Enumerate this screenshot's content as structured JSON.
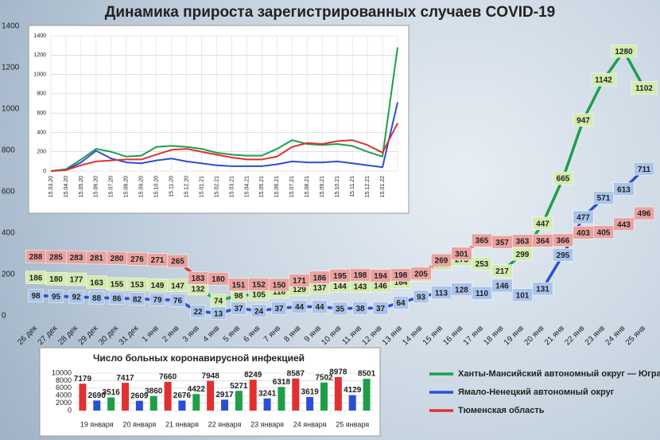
{
  "chart_data": [
    {
      "type": "line",
      "title": "Динамика прироста зарегистрированных случаев COVID-19",
      "categories": [
        "26 дек",
        "27 дек",
        "28 дек",
        "29 дек",
        "30 дек",
        "31 дек",
        "1 янв",
        "2 янв",
        "3 янв",
        "4 янв",
        "5 янв",
        "6 янв",
        "7 янв",
        "8 янв",
        "9 янв",
        "10 янв",
        "11 янв",
        "12 янв",
        "13 янв",
        "14 янв",
        "15 янв",
        "16 янв",
        "17 янв",
        "18 янв",
        "19 янв",
        "20 янв",
        "21 янв",
        "22 янв",
        "23 янв",
        "24 янв",
        "25 янв"
      ],
      "series": [
        {
          "name": "Ханты-Мансийский автономный округ — Югра",
          "color": "#1f9e4a",
          "label_fill": "#d3ebb0",
          "values": [
            186,
            180,
            177,
            163,
            155,
            153,
            149,
            147,
            132,
            74,
            98,
            105,
            118,
            129,
            137,
            144,
            143,
            146,
            164,
            199,
            251,
            273,
            253,
            217,
            299,
            447,
            665,
            947,
            1142,
            1280,
            1102
          ]
        },
        {
          "name": "Ямало-Ненецкий автономный округ",
          "color": "#2a4fd6",
          "label_fill": "#aac4ea",
          "values": [
            98,
            95,
            92,
            88,
            86,
            82,
            79,
            76,
            22,
            13,
            37,
            24,
            37,
            44,
            44,
            35,
            38,
            37,
            64,
            93,
            113,
            128,
            110,
            146,
            101,
            131,
            295,
            477,
            571,
            613,
            711
          ]
        },
        {
          "name": "Тюменская область",
          "color": "#e03030",
          "label_fill": "#eaa3a0",
          "values": [
            288,
            285,
            283,
            281,
            280,
            276,
            271,
            265,
            183,
            180,
            151,
            152,
            150,
            171,
            186,
            195,
            198,
            194,
            198,
            205,
            269,
            301,
            365,
            357,
            363,
            364,
            366,
            403,
            405,
            443,
            496
          ]
        }
      ],
      "ylim": [
        0,
        1400
      ],
      "yticks": [
        0,
        200,
        400,
        600,
        800,
        1000,
        1200,
        1400
      ],
      "grid": false,
      "data_labels": true,
      "legend": "bottom-right"
    },
    {
      "type": "line",
      "categories": [
        "15.03.20",
        "15.04.20",
        "15.05.20",
        "15.06.20",
        "15.07.20",
        "15.08.20",
        "15.09.20",
        "15.10.20",
        "15.11.20",
        "15.12.20",
        "15.01.21",
        "15.02.21",
        "15.03.21",
        "15.04.21",
        "15.05.21",
        "15.06.21",
        "15.07.21",
        "15.08.21",
        "15.09.21",
        "15.10.21",
        "15.11.21",
        "15.12.21",
        "15.01.22",
        null
      ],
      "series": [
        {
          "color": "#1f9e4a",
          "values": [
            0,
            20,
            120,
            230,
            200,
            150,
            160,
            250,
            260,
            250,
            230,
            190,
            170,
            160,
            160,
            230,
            320,
            280,
            270,
            280,
            260,
            200,
            150,
            1280
          ]
        },
        {
          "color": "#2a4fd6",
          "values": [
            0,
            10,
            90,
            210,
            130,
            90,
            80,
            110,
            130,
            100,
            80,
            60,
            50,
            50,
            50,
            70,
            100,
            90,
            90,
            100,
            80,
            60,
            40,
            711
          ]
        },
        {
          "color": "#e03030",
          "values": [
            0,
            10,
            60,
            100,
            110,
            120,
            120,
            170,
            220,
            230,
            200,
            170,
            140,
            120,
            120,
            150,
            250,
            290,
            280,
            310,
            320,
            270,
            190,
            496
          ]
        }
      ],
      "ylim": [
        0,
        1400
      ],
      "yticks": [
        0,
        200,
        400,
        600,
        800,
        1000,
        1200,
        1400
      ],
      "grid": true,
      "data_labels": false
    },
    {
      "type": "bar",
      "title": "Число больных коронавирусной инфекцией",
      "categories": [
        "19 января",
        "20 января",
        "21 января",
        "22 января",
        "23 января",
        "24 января",
        "25 января"
      ],
      "series": [
        {
          "color": "#e03030",
          "values": [
            7179,
            7417,
            7660,
            7948,
            8249,
            8587,
            8978
          ]
        },
        {
          "color": "#2a4fd6",
          "values": [
            2690,
            2609,
            2676,
            2917,
            3241,
            3619,
            4129
          ]
        },
        {
          "color": "#1f9e4a",
          "values": [
            3516,
            3860,
            4422,
            5271,
            6318,
            7502,
            8501
          ]
        }
      ],
      "ylim": [
        0,
        10000
      ],
      "yticks": [
        0,
        2000,
        4000,
        6000,
        8000,
        10000
      ],
      "grid": true,
      "data_labels": true
    }
  ]
}
